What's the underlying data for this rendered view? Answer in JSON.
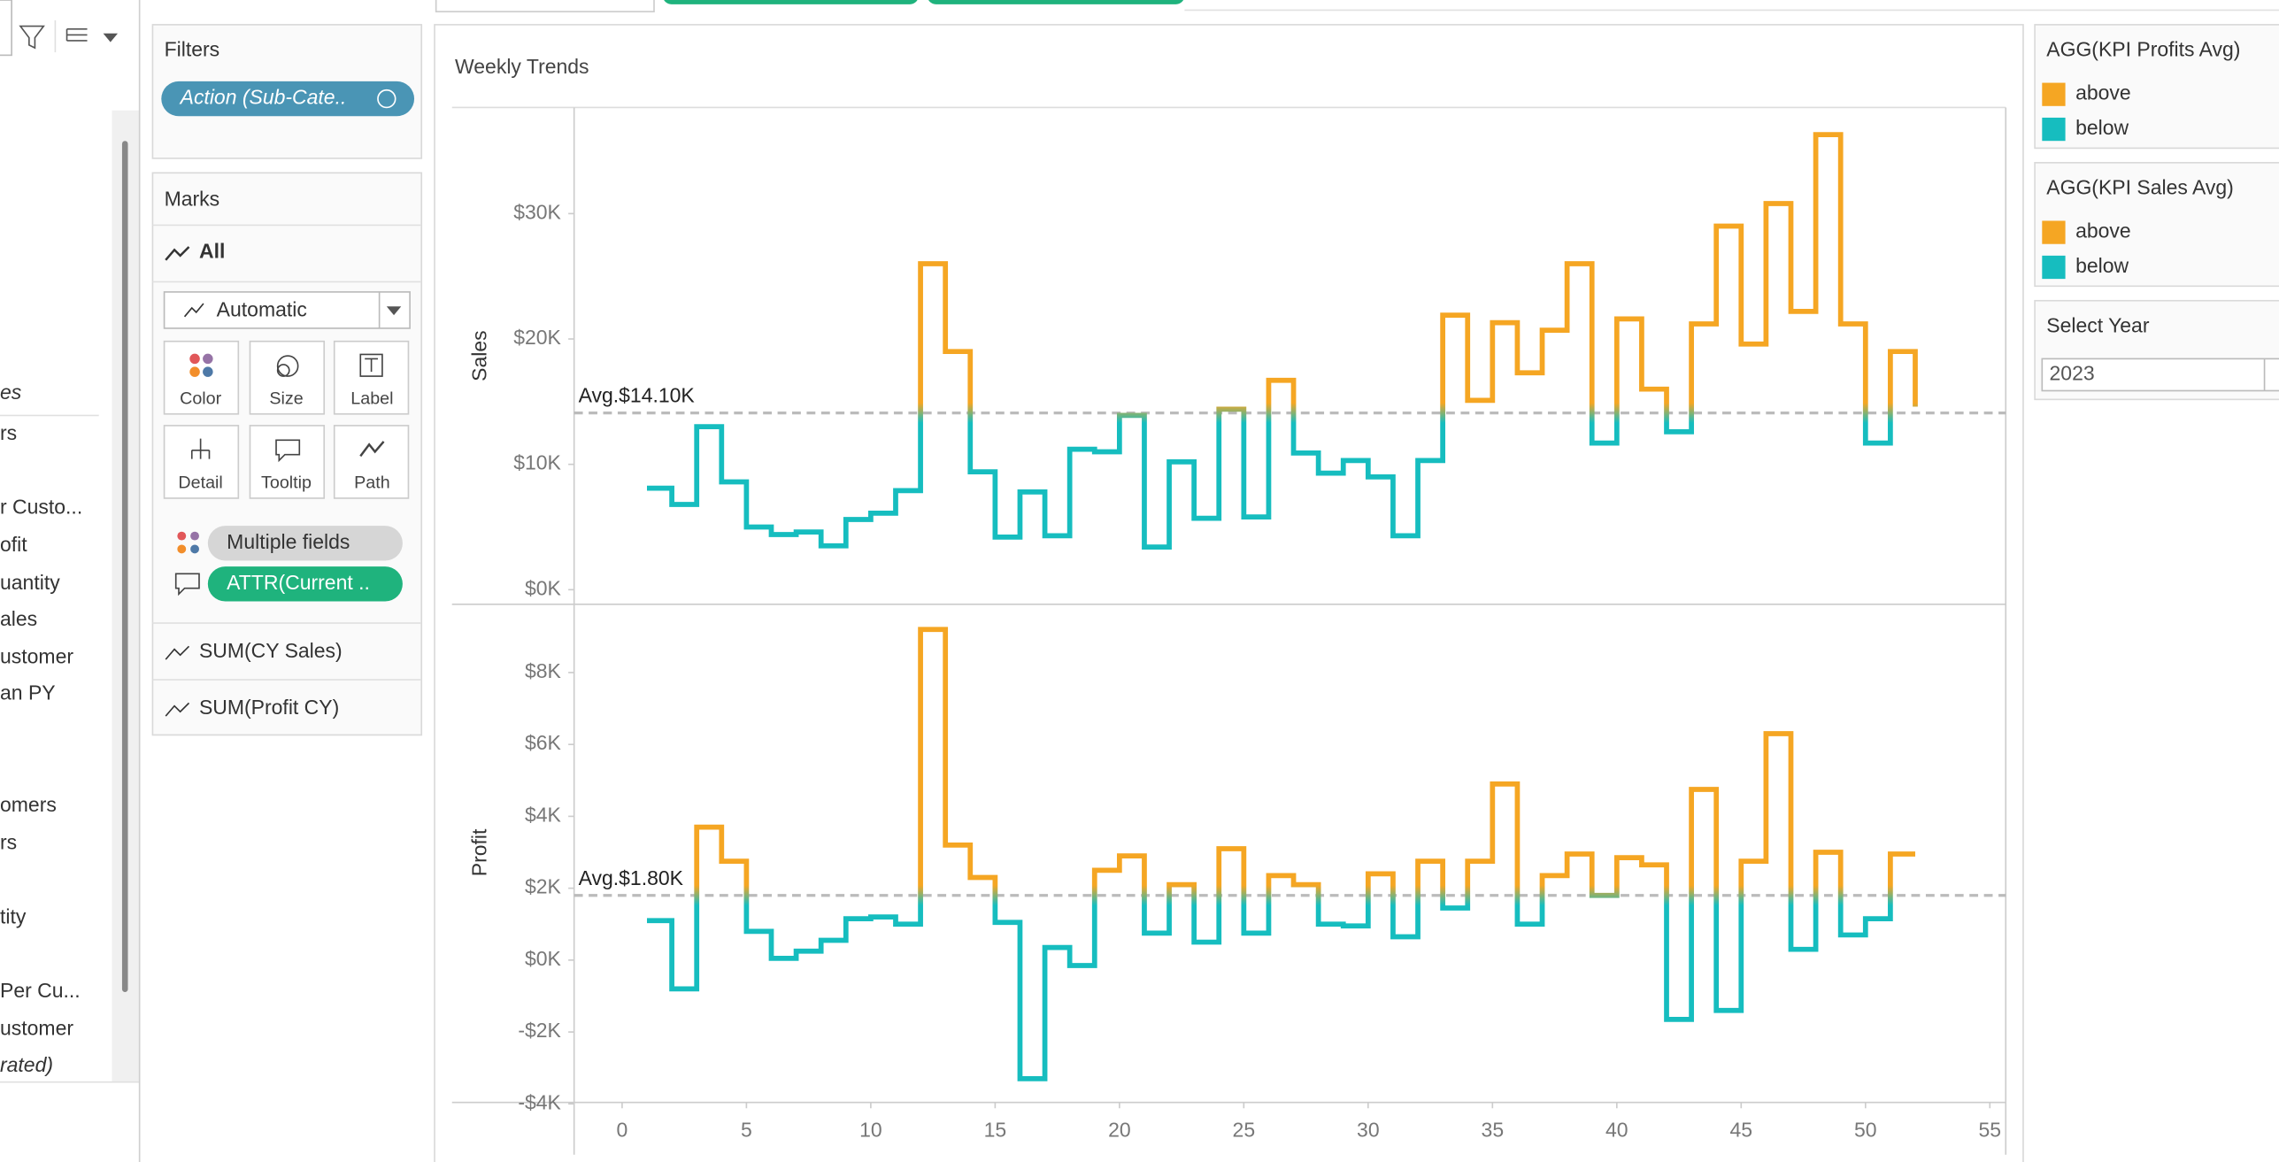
{
  "left_pane": {
    "items": [
      "es",
      "rs",
      "r Custo...",
      "ofit",
      "uantity",
      "ales",
      "ustomer",
      "an PY",
      "omers",
      "rs",
      "tity",
      " Per Cu...",
      "ustomer",
      "rated)"
    ]
  },
  "filters": {
    "title": "Filters",
    "pill": "Action (Sub-Cate.."
  },
  "marks": {
    "title": "Marks",
    "all": "All",
    "mark_type": "Automatic",
    "buttons": [
      "Color",
      "Size",
      "Label",
      "Detail",
      "Tooltip",
      "Path"
    ],
    "pills": [
      "Multiple fields",
      "ATTR(Current .."
    ],
    "measures": [
      "SUM(CY Sales)",
      "SUM(Profit CY)"
    ]
  },
  "view": {
    "title": "Weekly Trends"
  },
  "legends": [
    {
      "title": "AGG(KPI Profits Avg)",
      "items": [
        {
          "name": "above",
          "color": "#f5a623"
        },
        {
          "name": "below",
          "color": "#16bdbf"
        }
      ]
    },
    {
      "title": "AGG(KPI Sales Avg)",
      "items": [
        {
          "name": "above",
          "color": "#f5a623"
        },
        {
          "name": "below",
          "color": "#16bdbf"
        }
      ]
    }
  ],
  "year_filter": {
    "title": "Select Year",
    "value": "2023"
  },
  "chart_data": [
    {
      "type": "step-line",
      "y_label": "Sales",
      "x": [
        1,
        2,
        3,
        4,
        5,
        6,
        7,
        8,
        9,
        10,
        11,
        12,
        13,
        14,
        15,
        16,
        17,
        18,
        19,
        20,
        21,
        22,
        23,
        24,
        25,
        26,
        27,
        28,
        29,
        30,
        31,
        32,
        33,
        34,
        35,
        36,
        37,
        38,
        39,
        40,
        41,
        42,
        43,
        44,
        45,
        46,
        47,
        48,
        49,
        50,
        51,
        52
      ],
      "values": [
        8100,
        6800,
        13000,
        8600,
        5000,
        4400,
        4600,
        3500,
        5600,
        6100,
        7900,
        26000,
        19000,
        9400,
        4200,
        7800,
        4300,
        11200,
        11000,
        13900,
        3400,
        10200,
        5700,
        14400,
        5800,
        16700,
        10900,
        9300,
        10300,
        9000,
        4300,
        10300,
        21900,
        15100,
        21300,
        17300,
        20700,
        26000,
        11700,
        21600,
        16000,
        12600,
        21200,
        29000,
        19600,
        30800,
        22200,
        36300,
        21200,
        11700,
        19000,
        14600
      ],
      "xlim": [
        -1.93,
        55.64
      ],
      "ylim": [
        -1160,
        38350
      ],
      "yticks": [
        {
          "value": 0,
          "label": "$0K"
        },
        {
          "value": 10000,
          "label": "$10K"
        },
        {
          "value": 20000,
          "label": "$20K"
        },
        {
          "value": 30000,
          "label": "$30K"
        }
      ],
      "reference": {
        "value": 14100,
        "label": "Avg.$14.10K"
      },
      "color_above": "#f5a623",
      "color_below": "#16bdbf"
    },
    {
      "type": "step-line",
      "y_label": "Profit",
      "x": [
        1,
        2,
        3,
        4,
        5,
        6,
        7,
        8,
        9,
        10,
        11,
        12,
        13,
        14,
        15,
        16,
        17,
        18,
        19,
        20,
        21,
        22,
        23,
        24,
        25,
        26,
        27,
        28,
        29,
        30,
        31,
        32,
        33,
        34,
        35,
        36,
        37,
        38,
        39,
        40,
        41,
        42,
        43,
        44,
        45,
        46,
        47,
        48,
        49,
        50,
        51,
        52
      ],
      "values": [
        1100,
        -800,
        3700,
        2750,
        800,
        50,
        250,
        550,
        1150,
        1200,
        1000,
        9200,
        3200,
        2300,
        1050,
        -3300,
        350,
        -150,
        2500,
        2900,
        750,
        2100,
        500,
        3100,
        750,
        2350,
        2100,
        1000,
        950,
        2400,
        650,
        2750,
        1450,
        2750,
        4900,
        1000,
        2350,
        2950,
        1800,
        2850,
        2650,
        -1650,
        4750,
        -1400,
        2750,
        6300,
        300,
        3000,
        700,
        1150,
        2950,
        2950
      ],
      "xlim": [
        -1.93,
        55.64
      ],
      "ylim": [
        -3960,
        9860
      ],
      "xticks": [
        0,
        5,
        10,
        15,
        20,
        25,
        30,
        35,
        40,
        45,
        50,
        55
      ],
      "yticks": [
        {
          "value": -4000,
          "label": "-$4K"
        },
        {
          "value": -2000,
          "label": "-$2K"
        },
        {
          "value": 0,
          "label": "$0K"
        },
        {
          "value": 2000,
          "label": "$2K"
        },
        {
          "value": 4000,
          "label": "$4K"
        },
        {
          "value": 6000,
          "label": "$6K"
        },
        {
          "value": 8000,
          "label": "$8K"
        }
      ],
      "reference": {
        "value": 1800,
        "label": "Avg.$1.80K"
      },
      "color_above": "#f5a623",
      "color_below": "#16bdbf"
    }
  ]
}
